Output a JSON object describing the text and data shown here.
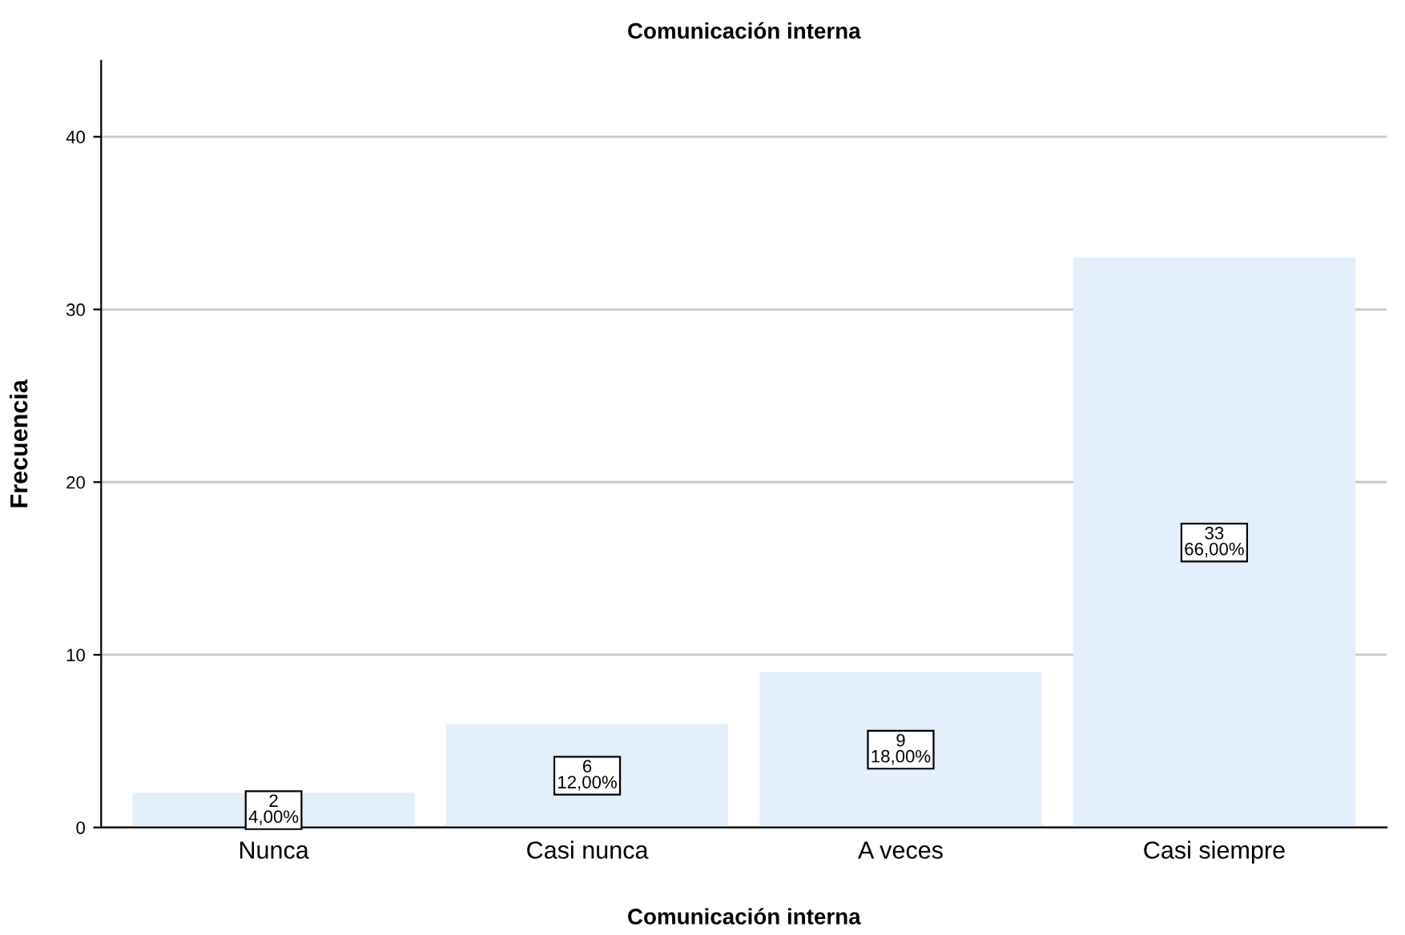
{
  "chart_data": {
    "type": "bar",
    "title": "Comunicación interna",
    "xlabel": "Comunicación interna",
    "ylabel": "Frecuencia",
    "categories": [
      "Nunca",
      "Casi nunca",
      "A veces",
      "Casi siempre"
    ],
    "values": [
      2,
      6,
      9,
      33
    ],
    "color": "#e3effb",
    "value_labels": [
      "2\n4,00%",
      "6\n12,00%",
      "9\n18,00%",
      "33\n66,00%"
    ],
    "ylim": [
      0,
      44.4
    ],
    "yticks": [
      0,
      10,
      20,
      30,
      40
    ],
    "grid": "y"
  }
}
